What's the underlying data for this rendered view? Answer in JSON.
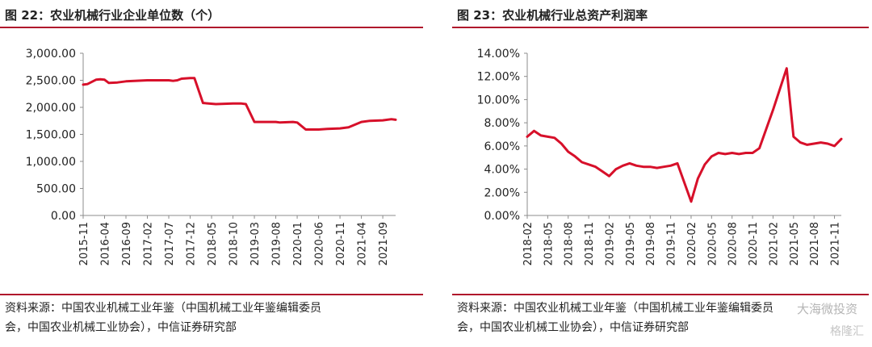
{
  "panels": [
    {
      "title": "图 22：农业机械行业企业单位数（个）",
      "source_line1": "资料来源：中国农业机械工业年鉴（中国机械工业年鉴编辑委员",
      "source_line2": "会，中国农业机械工业协会），中信证券研究部"
    },
    {
      "title": "图 23：农业机械行业总资产利润率",
      "source_line1": "资料来源：中国农业机械工业年鉴（中国机械工业年鉴编辑委员",
      "source_line2": "会，中国农业机械工业协会），中信证券研究部"
    }
  ],
  "watermark": {
    "text": "大海微投资",
    "sub_text": "格隆汇"
  },
  "colors": {
    "series": "#d7102a",
    "rule": "#b0182c",
    "axis": "#8c8c8c"
  },
  "chart_data": [
    {
      "type": "line",
      "title": "图 22：农业机械行业企业单位数（个）",
      "xlabel": "",
      "ylabel": "",
      "ylim": [
        0,
        3000
      ],
      "yticks": [
        "3,000.00",
        "2,500.00",
        "2,000.00",
        "1,500.00",
        "1,000.00",
        "500.00",
        "0.00"
      ],
      "ytick_values": [
        3000,
        2500,
        2000,
        1500,
        1000,
        500,
        0
      ],
      "xtick_labels": [
        "2015-11",
        "2016-04",
        "2016-09",
        "2017-02",
        "2017-07",
        "2017-12",
        "2018-05",
        "2018-10",
        "2019-03",
        "2019-08",
        "2020-01",
        "2020-06",
        "2020-11",
        "2021-04",
        "2021-09"
      ],
      "x_start": "2015-11",
      "x_end": "2021-12",
      "grid": false,
      "series": [
        {
          "points": [
            [
              "2015-11",
              2420
            ],
            [
              "2015-12",
              2430
            ],
            [
              "2016-02",
              2510
            ],
            [
              "2016-03",
              2520
            ],
            [
              "2016-04",
              2510
            ],
            [
              "2016-05",
              2450
            ],
            [
              "2016-07",
              2460
            ],
            [
              "2016-09",
              2480
            ],
            [
              "2016-11",
              2490
            ],
            [
              "2017-02",
              2500
            ],
            [
              "2017-07",
              2500
            ],
            [
              "2017-08",
              2490
            ],
            [
              "2017-09",
              2500
            ],
            [
              "2017-10",
              2530
            ],
            [
              "2017-12",
              2540
            ],
            [
              "2018-01",
              2540
            ],
            [
              "2018-03",
              2080
            ],
            [
              "2018-06",
              2060
            ],
            [
              "2018-10",
              2070
            ],
            [
              "2018-12",
              2070
            ],
            [
              "2019-01",
              2060
            ],
            [
              "2019-03",
              1730
            ],
            [
              "2019-08",
              1730
            ],
            [
              "2019-09",
              1720
            ],
            [
              "2019-12",
              1730
            ],
            [
              "2020-01",
              1720
            ],
            [
              "2020-03",
              1590
            ],
            [
              "2020-06",
              1590
            ],
            [
              "2020-08",
              1600
            ],
            [
              "2020-11",
              1610
            ],
            [
              "2021-01",
              1630
            ],
            [
              "2021-04",
              1730
            ],
            [
              "2021-06",
              1750
            ],
            [
              "2021-09",
              1760
            ],
            [
              "2021-11",
              1780
            ],
            [
              "2021-12",
              1770
            ]
          ]
        }
      ]
    },
    {
      "type": "line",
      "title": "图 23：农业机械行业总资产利润率",
      "xlabel": "",
      "ylabel": "",
      "ylim": [
        0,
        14
      ],
      "yticks": [
        "14.00%",
        "12.00%",
        "10.00%",
        "8.00%",
        "6.00%",
        "4.00%",
        "2.00%",
        "0.00%"
      ],
      "ytick_values": [
        14,
        12,
        10,
        8,
        6,
        4,
        2,
        0
      ],
      "xtick_labels": [
        "2018-02",
        "2018-05",
        "2018-08",
        "2018-11",
        "2019-02",
        "2019-05",
        "2019-08",
        "2019-11",
        "2020-02",
        "2020-05",
        "2020-08",
        "2020-11",
        "2021-02",
        "2021-05",
        "2021-08",
        "2021-11"
      ],
      "x_start": "2018-02",
      "x_end": "2021-12",
      "grid": false,
      "series": [
        {
          "points": [
            [
              "2018-02",
              6.8
            ],
            [
              "2018-03",
              7.3
            ],
            [
              "2018-04",
              6.9
            ],
            [
              "2018-05",
              6.8
            ],
            [
              "2018-06",
              6.7
            ],
            [
              "2018-07",
              6.2
            ],
            [
              "2018-08",
              5.5
            ],
            [
              "2018-09",
              5.1
            ],
            [
              "2018-10",
              4.6
            ],
            [
              "2018-11",
              4.4
            ],
            [
              "2018-12",
              4.2
            ],
            [
              "2019-01",
              3.8
            ],
            [
              "2019-02",
              3.4
            ],
            [
              "2019-03",
              4.0
            ],
            [
              "2019-04",
              4.3
            ],
            [
              "2019-05",
              4.5
            ],
            [
              "2019-06",
              4.3
            ],
            [
              "2019-07",
              4.2
            ],
            [
              "2019-08",
              4.2
            ],
            [
              "2019-09",
              4.1
            ],
            [
              "2019-10",
              4.2
            ],
            [
              "2019-11",
              4.3
            ],
            [
              "2019-12",
              4.5
            ],
            [
              "2020-02",
              1.2
            ],
            [
              "2020-03",
              3.2
            ],
            [
              "2020-04",
              4.4
            ],
            [
              "2020-05",
              5.1
            ],
            [
              "2020-06",
              5.4
            ],
            [
              "2020-07",
              5.3
            ],
            [
              "2020-08",
              5.4
            ],
            [
              "2020-09",
              5.3
            ],
            [
              "2020-10",
              5.4
            ],
            [
              "2020-11",
              5.4
            ],
            [
              "2020-12",
              5.8
            ],
            [
              "2021-02",
              9.1
            ],
            [
              "2021-04",
              12.7
            ],
            [
              "2021-05",
              6.8
            ],
            [
              "2021-06",
              6.3
            ],
            [
              "2021-07",
              6.1
            ],
            [
              "2021-08",
              6.2
            ],
            [
              "2021-09",
              6.3
            ],
            [
              "2021-10",
              6.2
            ],
            [
              "2021-11",
              6.0
            ],
            [
              "2021-12",
              6.6
            ]
          ]
        }
      ]
    }
  ]
}
